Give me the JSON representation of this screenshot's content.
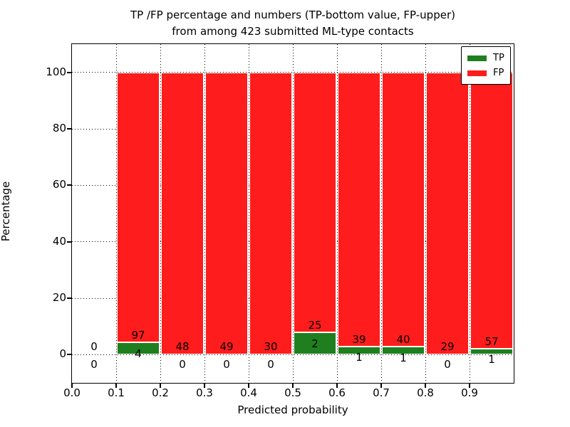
{
  "chart_data": {
    "type": "bar",
    "stacked": true,
    "normalized_to_percent": true,
    "title_lines": [
      "TP /FP percentage and numbers (TP-bottom value, FP-upper)",
      "from among 423 submitted ML-type contacts"
    ],
    "xlabel": "Predicted probability",
    "ylabel": "Percentage",
    "xlim": [
      0.0,
      1.0
    ],
    "ylim": [
      -10,
      110
    ],
    "grid": "dotted",
    "legend_position": "upper-right",
    "yticks": [
      0,
      20,
      40,
      60,
      80,
      100
    ],
    "xtick_values": [
      0.0,
      0.1,
      0.2,
      0.3,
      0.4,
      0.5,
      0.6,
      0.7,
      0.8,
      0.9
    ],
    "xtick_labels": [
      "0.0",
      "0.1",
      "0.2",
      "0.3",
      "0.4",
      "0.5",
      "0.6",
      "0.7",
      "0.8",
      "0.9"
    ],
    "series": [
      {
        "name": "TP",
        "color": "#1f7f1f"
      },
      {
        "name": "FP",
        "color": "#ff1c1c"
      }
    ],
    "bin_width": 0.1,
    "bins": [
      {
        "x0": 0.0,
        "tp": 0,
        "fp": 0
      },
      {
        "x0": 0.1,
        "tp": 4,
        "fp": 97
      },
      {
        "x0": 0.2,
        "tp": 0,
        "fp": 48
      },
      {
        "x0": 0.3,
        "tp": 0,
        "fp": 49
      },
      {
        "x0": 0.4,
        "tp": 0,
        "fp": 30
      },
      {
        "x0": 0.5,
        "tp": 2,
        "fp": 25
      },
      {
        "x0": 0.6,
        "tp": 1,
        "fp": 39
      },
      {
        "x0": 0.7,
        "tp": 1,
        "fp": 40
      },
      {
        "x0": 0.8,
        "tp": 0,
        "fp": 29
      },
      {
        "x0": 0.9,
        "tp": 1,
        "fp": 57
      }
    ]
  }
}
